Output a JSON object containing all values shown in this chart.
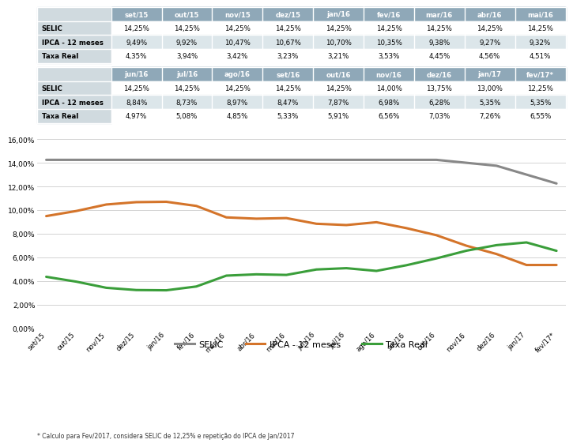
{
  "labels": [
    "set/15",
    "out/15",
    "nov/15",
    "dez/15",
    "jan/16",
    "fev/16",
    "mar/16",
    "abr/16",
    "mai/16",
    "jun/16",
    "jul/16",
    "ago/16",
    "set/16",
    "out/16",
    "nov/16",
    "dez/16",
    "jan/17",
    "fev/17*"
  ],
  "selic": [
    14.25,
    14.25,
    14.25,
    14.25,
    14.25,
    14.25,
    14.25,
    14.25,
    14.25,
    14.25,
    14.25,
    14.25,
    14.25,
    14.25,
    14.0,
    13.75,
    13.0,
    12.25
  ],
  "ipca": [
    9.49,
    9.92,
    10.47,
    10.67,
    10.7,
    10.35,
    9.38,
    9.27,
    9.32,
    8.84,
    8.73,
    8.97,
    8.47,
    7.87,
    6.98,
    6.28,
    5.35,
    5.35
  ],
  "taxa": [
    4.35,
    3.94,
    3.42,
    3.23,
    3.21,
    3.53,
    4.45,
    4.56,
    4.51,
    4.97,
    5.08,
    4.85,
    5.33,
    5.91,
    6.56,
    7.03,
    7.26,
    6.55
  ],
  "table1_cols": [
    "set/15",
    "out/15",
    "nov/15",
    "dez/15",
    "jan/16",
    "fev/16",
    "mar/16",
    "abr/16",
    "mai/16"
  ],
  "table1_selic": [
    "14,25%",
    "14,25%",
    "14,25%",
    "14,25%",
    "14,25%",
    "14,25%",
    "14,25%",
    "14,25%",
    "14,25%"
  ],
  "table1_ipca": [
    "9,49%",
    "9,92%",
    "10,47%",
    "10,67%",
    "10,70%",
    "10,35%",
    "9,38%",
    "9,27%",
    "9,32%"
  ],
  "table1_taxa": [
    "4,35%",
    "3,94%",
    "3,42%",
    "3,23%",
    "3,21%",
    "3,53%",
    "4,45%",
    "4,56%",
    "4,51%"
  ],
  "table2_cols": [
    "jun/16",
    "jul/16",
    "ago/16",
    "set/16",
    "out/16",
    "nov/16",
    "dez/16",
    "jan/17",
    "fev/17*"
  ],
  "table2_selic": [
    "14,25%",
    "14,25%",
    "14,25%",
    "14,25%",
    "14,25%",
    "14,00%",
    "13,75%",
    "13,00%",
    "12,25%"
  ],
  "table2_ipca": [
    "8,84%",
    "8,73%",
    "8,97%",
    "8,47%",
    "7,87%",
    "6,98%",
    "6,28%",
    "5,35%",
    "5,35%"
  ],
  "table2_taxa": [
    "4,97%",
    "5,08%",
    "4,85%",
    "5,33%",
    "5,91%",
    "6,56%",
    "7,03%",
    "7,26%",
    "6,55%"
  ],
  "color_selic": "#888888",
  "color_ipca": "#D4742A",
  "color_taxa": "#3A9E3A",
  "color_header_bg": "#8FA8B8",
  "color_row_odd": "#FFFFFF",
  "color_row_even": "#DCE6EA",
  "color_label_bg": "#D0DADF",
  "footnote": "* Calculo para Fev/2017, considera SELIC de 12,25% e repetição do IPCA de Jan/2017"
}
